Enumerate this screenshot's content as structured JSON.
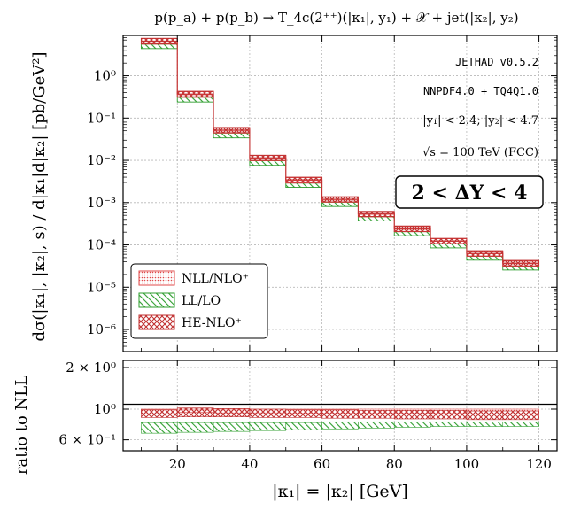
{
  "chart_data": {
    "type": "step-band",
    "title": "p(p_a) + p(p_b) → T_4c(2⁺⁺)(|κ₁|, y₁) + 𝒳 + jet(|κ₂|, y₂)",
    "xlabel": "|κ₁| = |κ₂| [GeV]",
    "ylabel_main": "dσ(|κ₁|, |κ₂|, s) / d|κ₁|d|κ₂|  [pb/GeV²]",
    "ylabel_ratio": "ratio to NLL",
    "xlim": [
      5,
      125
    ],
    "xticks": [
      20,
      40,
      60,
      80,
      100,
      120
    ],
    "xtick_labels": [
      "20",
      "40",
      "60",
      "80",
      "100",
      "120"
    ],
    "main": {
      "yscale": "log",
      "ylim": [
        3e-07,
        9
      ],
      "yticks": [
        1e-06,
        1e-05,
        0.0001,
        0.001,
        0.01,
        0.1,
        1
      ],
      "ytick_labels": [
        "10⁻⁶",
        "10⁻⁵",
        "10⁻⁴",
        "10⁻³",
        "10⁻²",
        "10⁻¹",
        "10⁰"
      ],
      "bins": [
        [
          10,
          20
        ],
        [
          20,
          30
        ],
        [
          30,
          40
        ],
        [
          40,
          50
        ],
        [
          50,
          60
        ],
        [
          60,
          70
        ],
        [
          70,
          80
        ],
        [
          80,
          90
        ],
        [
          90,
          100
        ],
        [
          100,
          110
        ],
        [
          110,
          120
        ]
      ],
      "series": [
        {
          "name": "NLL/NLO⁺",
          "color": "#e04a4a",
          "pattern": "dots",
          "low": [
            5.6,
            0.31,
            0.044,
            0.0098,
            0.0029,
            0.00102,
            0.00046,
            0.000205,
            0.000105,
            5.35e-05,
            3.15e-05
          ],
          "high": [
            7.6,
            0.42,
            0.059,
            0.013,
            0.0039,
            0.00136,
            0.00061,
            0.000275,
            0.00014,
            7.15e-05,
            4.2e-05
          ]
        },
        {
          "name": "LL/LO",
          "color": "#2e9e2e",
          "pattern": "hatch",
          "low": [
            4.4,
            0.24,
            0.034,
            0.0076,
            0.0023,
            0.00081,
            0.00037,
            0.000165,
            8.5e-05,
            4.35e-05,
            2.55e-05
          ],
          "high": [
            5.6,
            0.31,
            0.044,
            0.0098,
            0.0029,
            0.00102,
            0.00046,
            0.000205,
            0.000105,
            5.35e-05,
            3.15e-05
          ]
        },
        {
          "name": "HE-NLO⁺",
          "color": "#c03030",
          "pattern": "crosshatch",
          "low": [
            5.7,
            0.32,
            0.045,
            0.01,
            0.003,
            0.00104,
            0.00047,
            0.000208,
            0.000107,
            5.45e-05,
            3.2e-05
          ],
          "high": [
            7.7,
            0.43,
            0.06,
            0.0132,
            0.004,
            0.00138,
            0.00062,
            0.00028,
            0.000143,
            7.3e-05,
            4.3e-05
          ]
        }
      ]
    },
    "ratio": {
      "yscale": "log",
      "ylim": [
        0.5,
        2.25
      ],
      "yticks": [
        0.6,
        1.0,
        2.0
      ],
      "ytick_labels": [
        "6 × 10⁻¹",
        "10⁰",
        "2 × 10⁰"
      ],
      "reference_line": 1.0,
      "series": [
        {
          "name": "NLL/NLO⁺",
          "low": [
            0.92,
            0.95,
            0.94,
            0.94,
            0.93,
            0.93,
            0.93,
            0.93,
            0.93,
            0.92,
            0.92
          ],
          "high": [
            1.0,
            1.0,
            1.0,
            1.0,
            1.0,
            1.0,
            1.0,
            1.0,
            1.0,
            1.0,
            1.0
          ]
        },
        {
          "name": "LL/LO",
          "low": [
            0.67,
            0.68,
            0.69,
            0.7,
            0.71,
            0.72,
            0.73,
            0.74,
            0.75,
            0.75,
            0.75
          ],
          "high": [
            0.8,
            0.8,
            0.8,
            0.8,
            0.8,
            0.81,
            0.81,
            0.81,
            0.81,
            0.81,
            0.81
          ]
        },
        {
          "name": "HE-NLO⁺",
          "low": [
            0.87,
            0.88,
            0.88,
            0.87,
            0.87,
            0.86,
            0.86,
            0.85,
            0.85,
            0.84,
            0.84
          ],
          "high": [
            0.99,
            1.02,
            1.01,
            1.0,
            0.99,
            0.99,
            0.98,
            0.98,
            0.98,
            0.97,
            0.97
          ]
        }
      ]
    },
    "legend_position": "bottom-left",
    "annotations": {
      "code": "JETHAD v0.5.2",
      "pdf": "NNPDF4.0 + TQ4Q1.0",
      "cuts": "|y₁| < 2.4;  |y₂| < 4.7",
      "energy": "√s = 100 TeV (FCC)",
      "rapidity_box": "2 < ΔY < 4"
    }
  }
}
